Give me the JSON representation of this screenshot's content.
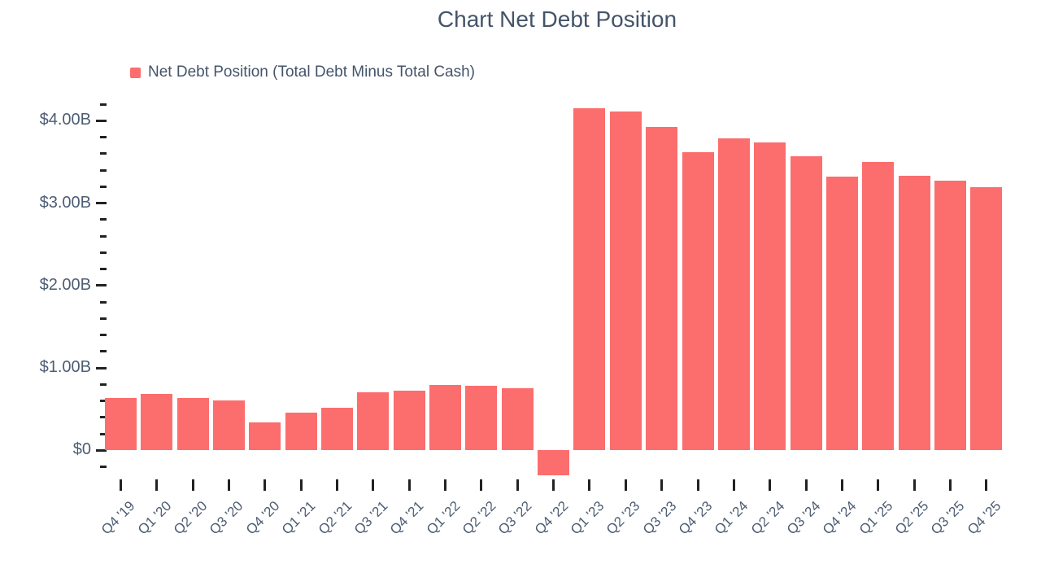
{
  "page": {
    "background": "#ffffff"
  },
  "chart_data": {
    "type": "bar",
    "title": "Chart Net Debt Position",
    "legend": {
      "label": "Net Debt Position (Total Debt Minus Total Cash)",
      "color": "#FC6D6D",
      "position": "top-left"
    },
    "categories": [
      "Q4 '19",
      "Q1 '20",
      "Q2 '20",
      "Q3 '20",
      "Q4 '20",
      "Q1 '21",
      "Q2 '21",
      "Q3 '21",
      "Q4 '21",
      "Q1 '22",
      "Q2 '22",
      "Q3 '22",
      "Q4 '22",
      "Q1 '23",
      "Q2 '23",
      "Q3 '23",
      "Q4 '23",
      "Q1 '24",
      "Q2 '24",
      "Q3 '24",
      "Q4 '24",
      "Q1 '25",
      "Q2 '25",
      "Q3 '25",
      "Q4 '25"
    ],
    "values": [
      0.64,
      0.68,
      0.64,
      0.61,
      0.34,
      0.46,
      0.52,
      0.7,
      0.72,
      0.79,
      0.78,
      0.75,
      -0.3,
      4.15,
      4.11,
      3.92,
      3.62,
      3.79,
      3.74,
      3.57,
      3.32,
      3.5,
      3.33,
      3.27,
      3.19
    ],
    "value_unit": "USD billions",
    "xlabel": "",
    "ylabel": "",
    "ylim": [
      -0.45,
      4.25
    ],
    "grid": false,
    "y_axis": {
      "major_ticks": [
        {
          "value": 0,
          "label": "$0"
        },
        {
          "value": 1,
          "label": "$1.00B"
        },
        {
          "value": 2,
          "label": "$2.00B"
        },
        {
          "value": 3,
          "label": "$3.00B"
        },
        {
          "value": 4,
          "label": "$4.00B"
        }
      ],
      "minor_step": 0.2,
      "minor_min": -0.2,
      "minor_max": 4.2
    },
    "colors": {
      "bar": "#FC6D6D",
      "title_text": "#44546A",
      "axis_text": "#4D5D73",
      "tick": "#222222"
    }
  }
}
